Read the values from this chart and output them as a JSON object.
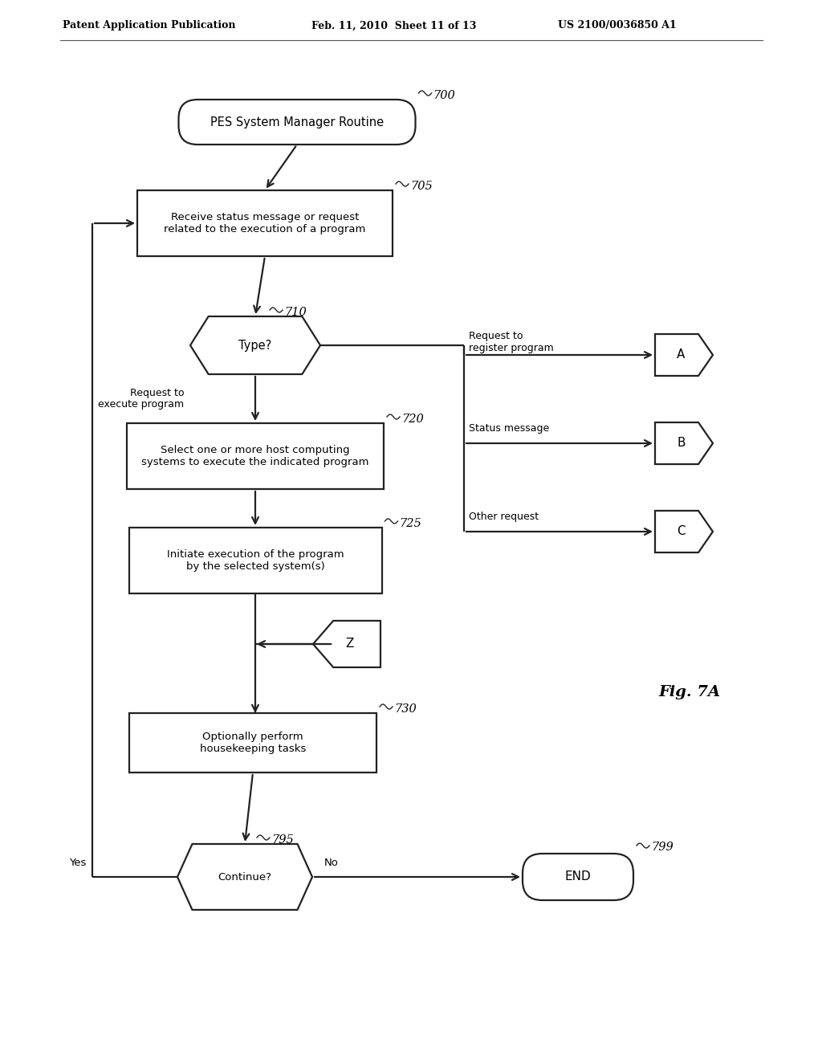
{
  "header_left": "Patent Application Publication",
  "header_mid": "Feb. 11, 2010  Sheet 11 of 13",
  "header_right": "US 2100/0036850 A1",
  "fig_label": "Fig. 7A",
  "bg": "#ffffff",
  "lc": "#222222",
  "tc": "#000000",
  "lw": 1.6,
  "start_label": "PES System Manager Routine",
  "ref_700": "700",
  "box705_label": "Receive status message or request\nrelated to the execution of a program",
  "ref_705": "705",
  "hex710_label": "Type?",
  "ref_710": "710",
  "label_req_exec": "Request to\nexecute program",
  "box720_label": "Select one or more host computing\nsystems to execute the indicated program",
  "ref_720": "720",
  "box725_label": "Initiate execution of the program\nby the selected system(s)",
  "ref_725": "725",
  "Z_label": "Z",
  "box730_label": "Optionally perform\nhousekeeping tasks",
  "ref_730": "730",
  "diamond795_label": "Continue?",
  "ref_795": "795",
  "end_label": "END",
  "ref_799": "799",
  "yes_label": "Yes",
  "no_label": "No",
  "A_label": "A",
  "B_label": "B",
  "C_label": "C",
  "label_req_reg": "Request to\nregister program",
  "label_status": "Status message",
  "label_other": "Other request"
}
